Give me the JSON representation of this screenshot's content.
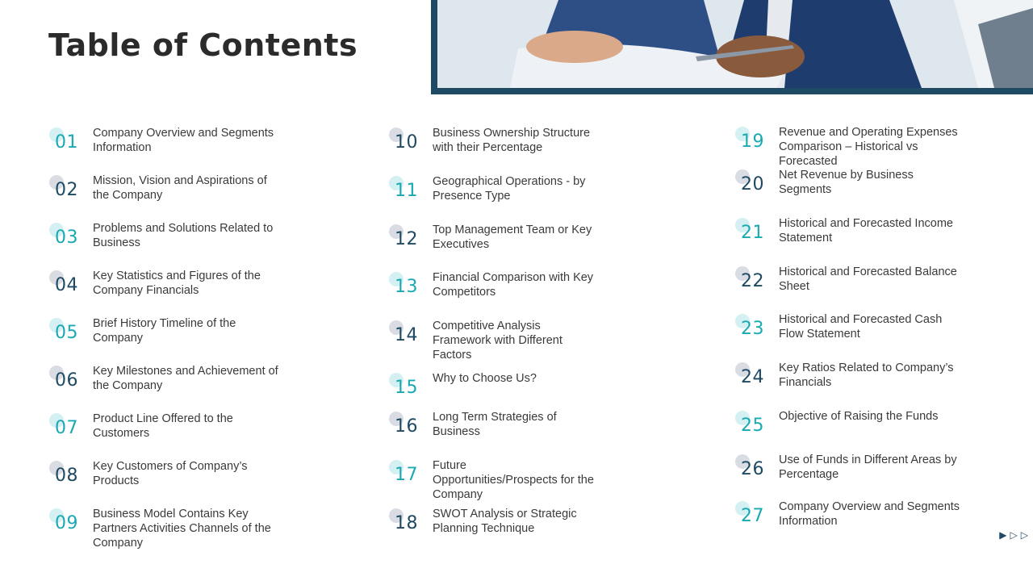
{
  "page": {
    "title": "Table of Contents"
  },
  "colors": {
    "teal": "#19a9b3",
    "navy": "#1f4a63",
    "dot_teal": "#d4f0f2",
    "dot_gray": "#d9dde3"
  },
  "columns": [
    {
      "items": [
        {
          "number": "01",
          "label": "Company Overview and Segments Information",
          "accent": "teal"
        },
        {
          "number": "02",
          "label": "Mission, Vision and Aspirations of the Company",
          "accent": "navy"
        },
        {
          "number": "03",
          "label": "Problems and Solutions Related to Business",
          "accent": "teal"
        },
        {
          "number": "04",
          "label": "Key Statistics and Figures of the Company Financials",
          "accent": "navy"
        },
        {
          "number": "05",
          "label": "Brief History Timeline of the Company",
          "accent": "teal"
        },
        {
          "number": "06",
          "label": "Key Milestones and Achievement of the Company",
          "accent": "navy"
        },
        {
          "number": "07",
          "label": "Product Line Offered to the Customers",
          "accent": "teal"
        },
        {
          "number": "08",
          "label": "Key Customers of Company’s Products",
          "accent": "navy"
        },
        {
          "number": "09",
          "label": "Business Model Contains Key Partners Activities Channels of the Company",
          "accent": "teal"
        }
      ]
    },
    {
      "items": [
        {
          "number": "10",
          "label": "Business Ownership Structure with their Percentage",
          "accent": "navy"
        },
        {
          "number": "11",
          "label": "Geographical Operations - by Presence Type",
          "accent": "teal"
        },
        {
          "number": "12",
          "label": "Top Management Team or Key Executives",
          "accent": "navy"
        },
        {
          "number": "13",
          "label": "Financial Comparison with Key Competitors",
          "accent": "teal"
        },
        {
          "number": "14",
          "label": "Competitive Analysis Framework with Different Factors",
          "accent": "navy"
        },
        {
          "number": "15",
          "label": "Why to Choose Us?",
          "accent": "teal"
        },
        {
          "number": "16",
          "label": "Long Term Strategies of Business",
          "accent": "navy"
        },
        {
          "number": "17",
          "label": "Future Opportunities/Prospects for the Company",
          "accent": "teal"
        },
        {
          "number": "18",
          "label": "SWOT Analysis or Strategic Planning Technique",
          "accent": "navy"
        }
      ]
    },
    {
      "items": [
        {
          "number": "19",
          "label": "Revenue and Operating Expenses Comparison – Historical vs Forecasted",
          "accent": "teal"
        },
        {
          "number": "20",
          "label": "Net Revenue by Business Segments",
          "accent": "navy"
        },
        {
          "number": "21",
          "label": "Historical and Forecasted Income Statement",
          "accent": "teal"
        },
        {
          "number": "22",
          "label": "Historical and Forecasted Balance Sheet",
          "accent": "navy"
        },
        {
          "number": "23",
          "label": "Historical and Forecasted Cash Flow Statement",
          "accent": "teal"
        },
        {
          "number": "24",
          "label": "Key Ratios Related to Company’s Financials",
          "accent": "navy"
        },
        {
          "number": "25",
          "label": "Objective of Raising the Funds",
          "accent": "teal"
        },
        {
          "number": "26",
          "label": "Use of Funds in Different Areas by Percentage",
          "accent": "navy"
        },
        {
          "number": "27",
          "label": "Company Overview and Segments Information",
          "accent": "teal"
        }
      ]
    }
  ],
  "nav": {
    "arrows": [
      "▶",
      "▷",
      "▷"
    ]
  }
}
